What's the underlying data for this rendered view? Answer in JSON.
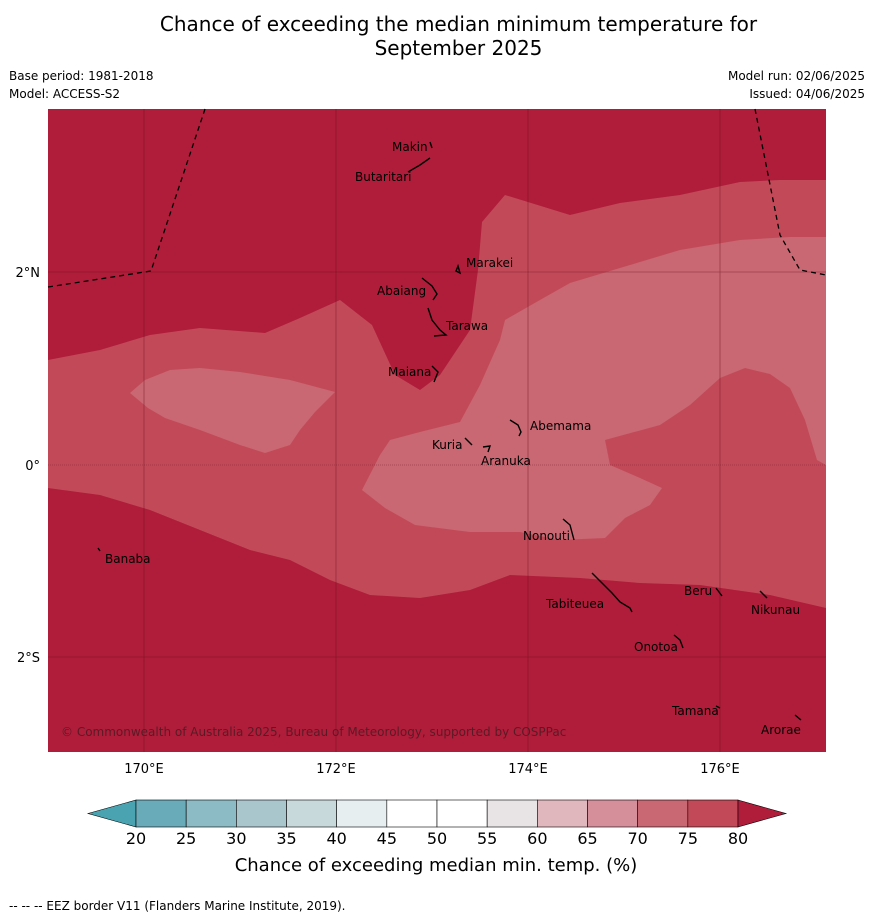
{
  "title_line1": "Chance of exceeding the median minimum temperature for",
  "title_line2": "September 2025",
  "meta": {
    "base_period": "Base period: 1981-2018",
    "model": "Model: ACCESS-S2",
    "model_run": "Model run: 02/06/2025",
    "issued": "Issued: 04/06/2025"
  },
  "map": {
    "lon_ticks": [
      "170°E",
      "172°E",
      "174°E",
      "176°E"
    ],
    "lat_ticks": [
      "2°N",
      "0°",
      "2°S"
    ],
    "islands": [
      "Makin",
      "Butaritari",
      "Marakei",
      "Abaiang",
      "Tarawa",
      "Maiana",
      "Abemama",
      "Kuria",
      "Aranuka",
      "Nonouti",
      "Banaba",
      "Tabiteuea",
      "Beru",
      "Nikunau",
      "Onotoa",
      "Tamana",
      "Arorae"
    ],
    "copyright": "© Commonwealth of Australia 2025, Bureau of Meteorology, supported by COSPPac"
  },
  "colorbar": {
    "ticks": [
      "20",
      "25",
      "30",
      "35",
      "40",
      "45",
      "50",
      "55",
      "60",
      "65",
      "70",
      "75",
      "80"
    ],
    "colors": [
      "#6aabb9",
      "#8cbbc6",
      "#a9c6cc",
      "#c8d9dc",
      "#e6eef0",
      "#ffffff",
      "#ffffff",
      "#e8e4e5",
      "#e1b7be",
      "#d58f9a",
      "#c96872",
      "#c24a58"
    ],
    "under_color": "#4aa3b0",
    "over_color": "#b01d3a",
    "title": "Chance of exceeding median min. temp. (%)"
  },
  "footer": "--  --  -- EEZ border V11 (Flanders Marine Institute, 2019)."
}
